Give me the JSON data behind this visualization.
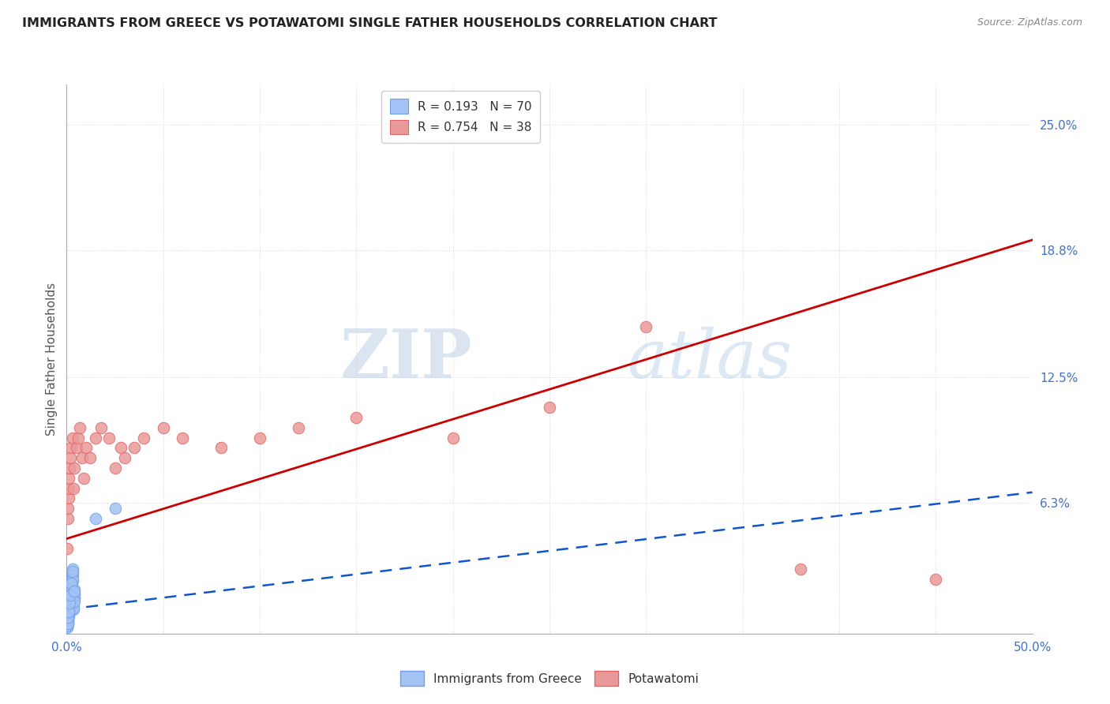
{
  "title": "IMMIGRANTS FROM GREECE VS POTAWATOMI SINGLE FATHER HOUSEHOLDS CORRELATION CHART",
  "source": "Source: ZipAtlas.com",
  "ylabel": "Single Father Households",
  "xlim": [
    0.0,
    0.5
  ],
  "ylim": [
    -0.002,
    0.27
  ],
  "ytick_vals": [
    0.063,
    0.125,
    0.188,
    0.25
  ],
  "ytick_labels": [
    "6.3%",
    "12.5%",
    "18.8%",
    "25.0%"
  ],
  "xtick_vals": [
    0.0,
    0.05,
    0.1,
    0.15,
    0.2,
    0.25,
    0.3,
    0.35,
    0.4,
    0.45,
    0.5
  ],
  "watermark_zip": "ZIP",
  "watermark_atlas": "atlas",
  "greece_R": "0.193",
  "greece_N": "70",
  "potawatomi_R": "0.754",
  "potawatomi_N": "38",
  "greece_fill": "#a4c2f4",
  "potawatomi_fill": "#ea9999",
  "greece_edge": "#6d9eeb",
  "potawatomi_edge": "#e06666",
  "greece_trend_color": "#1155cc",
  "potawatomi_trend_color": "#cc0000",
  "background": "#ffffff",
  "greece_x": [
    0.0005,
    0.0008,
    0.001,
    0.0012,
    0.0015,
    0.002,
    0.0025,
    0.003,
    0.0035,
    0.004,
    0.0005,
    0.0007,
    0.001,
    0.0013,
    0.0018,
    0.002,
    0.0022,
    0.003,
    0.0033,
    0.004,
    0.0004,
    0.0006,
    0.0009,
    0.0011,
    0.0014,
    0.0019,
    0.0021,
    0.0028,
    0.0032,
    0.0038,
    0.0003,
    0.0005,
    0.0008,
    0.001,
    0.0015,
    0.002,
    0.0025,
    0.003,
    0.0035,
    0.004,
    0.0004,
    0.0007,
    0.0009,
    0.0012,
    0.0016,
    0.002,
    0.0024,
    0.003,
    0.0034,
    0.004,
    0.0003,
    0.0006,
    0.001,
    0.0013,
    0.0017,
    0.0022,
    0.0026,
    0.0031,
    0.0036,
    0.004,
    0.0005,
    0.0008,
    0.001,
    0.0014,
    0.002,
    0.0023,
    0.003,
    0.015,
    0.025,
    0.004
  ],
  "greece_y": [
    0.005,
    0.008,
    0.01,
    0.012,
    0.015,
    0.02,
    0.025,
    0.03,
    0.015,
    0.02,
    0.003,
    0.006,
    0.008,
    0.01,
    0.013,
    0.018,
    0.022,
    0.028,
    0.012,
    0.018,
    0.002,
    0.004,
    0.007,
    0.009,
    0.011,
    0.016,
    0.02,
    0.026,
    0.011,
    0.016,
    0.001,
    0.003,
    0.006,
    0.008,
    0.01,
    0.015,
    0.019,
    0.024,
    0.01,
    0.015,
    0.004,
    0.007,
    0.009,
    0.011,
    0.014,
    0.017,
    0.021,
    0.027,
    0.013,
    0.017,
    0.002,
    0.005,
    0.008,
    0.01,
    0.012,
    0.016,
    0.02,
    0.025,
    0.011,
    0.014,
    0.003,
    0.006,
    0.009,
    0.013,
    0.017,
    0.023,
    0.029,
    0.055,
    0.06,
    0.019
  ],
  "potawatomi_x": [
    0.0003,
    0.0005,
    0.0007,
    0.0009,
    0.001,
    0.0012,
    0.0015,
    0.002,
    0.0025,
    0.003,
    0.0035,
    0.004,
    0.005,
    0.006,
    0.007,
    0.008,
    0.009,
    0.01,
    0.012,
    0.015,
    0.018,
    0.022,
    0.025,
    0.028,
    0.03,
    0.035,
    0.04,
    0.05,
    0.06,
    0.08,
    0.1,
    0.12,
    0.15,
    0.2,
    0.25,
    0.3,
    0.38,
    0.45
  ],
  "potawatomi_y": [
    0.04,
    0.055,
    0.06,
    0.065,
    0.07,
    0.075,
    0.08,
    0.085,
    0.09,
    0.095,
    0.07,
    0.08,
    0.09,
    0.095,
    0.1,
    0.085,
    0.075,
    0.09,
    0.085,
    0.095,
    0.1,
    0.095,
    0.08,
    0.09,
    0.085,
    0.09,
    0.095,
    0.1,
    0.095,
    0.09,
    0.095,
    0.1,
    0.105,
    0.095,
    0.11,
    0.15,
    0.03,
    0.025
  ],
  "greece_trend_start_y": 0.01,
  "greece_trend_end_y": 0.068,
  "potawatomi_trend_start_y": 0.045,
  "potawatomi_trend_end_y": 0.193
}
